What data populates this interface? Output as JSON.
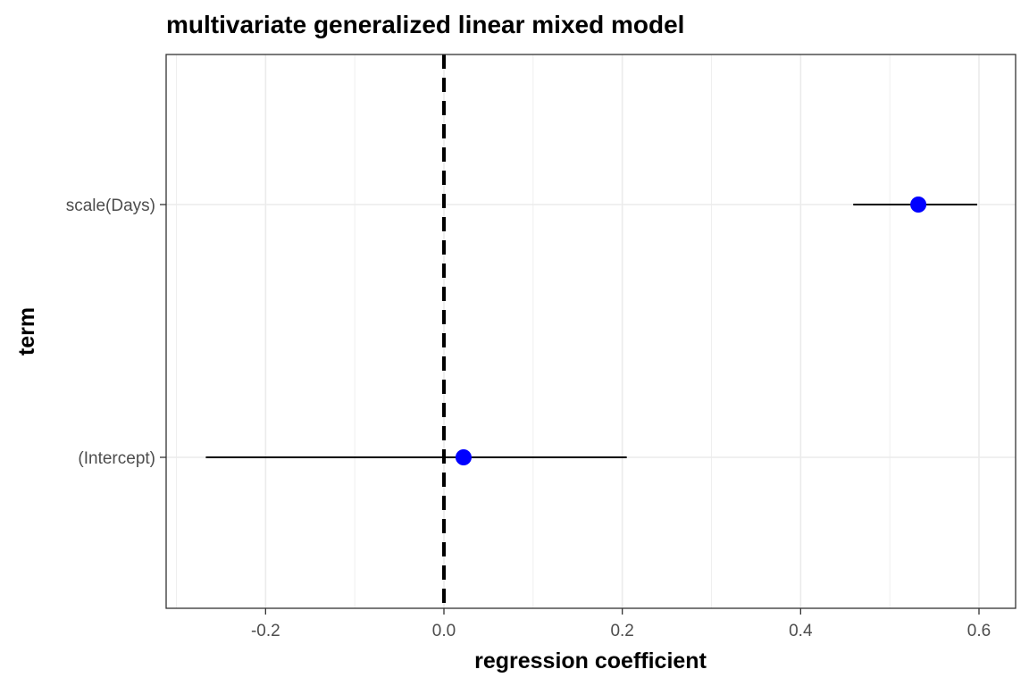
{
  "chart_data": {
    "type": "scatter",
    "subtype": "coefficient-plot",
    "title": "multivariate generalized linear mixed model",
    "xlabel": "regression coefficient",
    "ylabel": "term",
    "xlim": [
      -0.31,
      0.64
    ],
    "x_ticks": [
      -0.2,
      0.0,
      0.2,
      0.4,
      0.6
    ],
    "x_tick_labels": [
      "-0.2",
      "0.0",
      "0.2",
      "0.4",
      "0.6"
    ],
    "categories": [
      "(Intercept)",
      "scale(Days)"
    ],
    "series": [
      {
        "values": [
          0.022,
          0.532
        ],
        "ci_low": [
          -0.267,
          0.459
        ],
        "ci_high": [
          0.205,
          0.598
        ]
      }
    ],
    "reference_line": {
      "x": 0.0,
      "style": "dashed"
    },
    "grid": true,
    "colors": {
      "point": "#0000ff",
      "errorbar": "#000000",
      "reference_line": "#000000",
      "grid": "#ebebeb",
      "panel_border": "#333333"
    }
  }
}
